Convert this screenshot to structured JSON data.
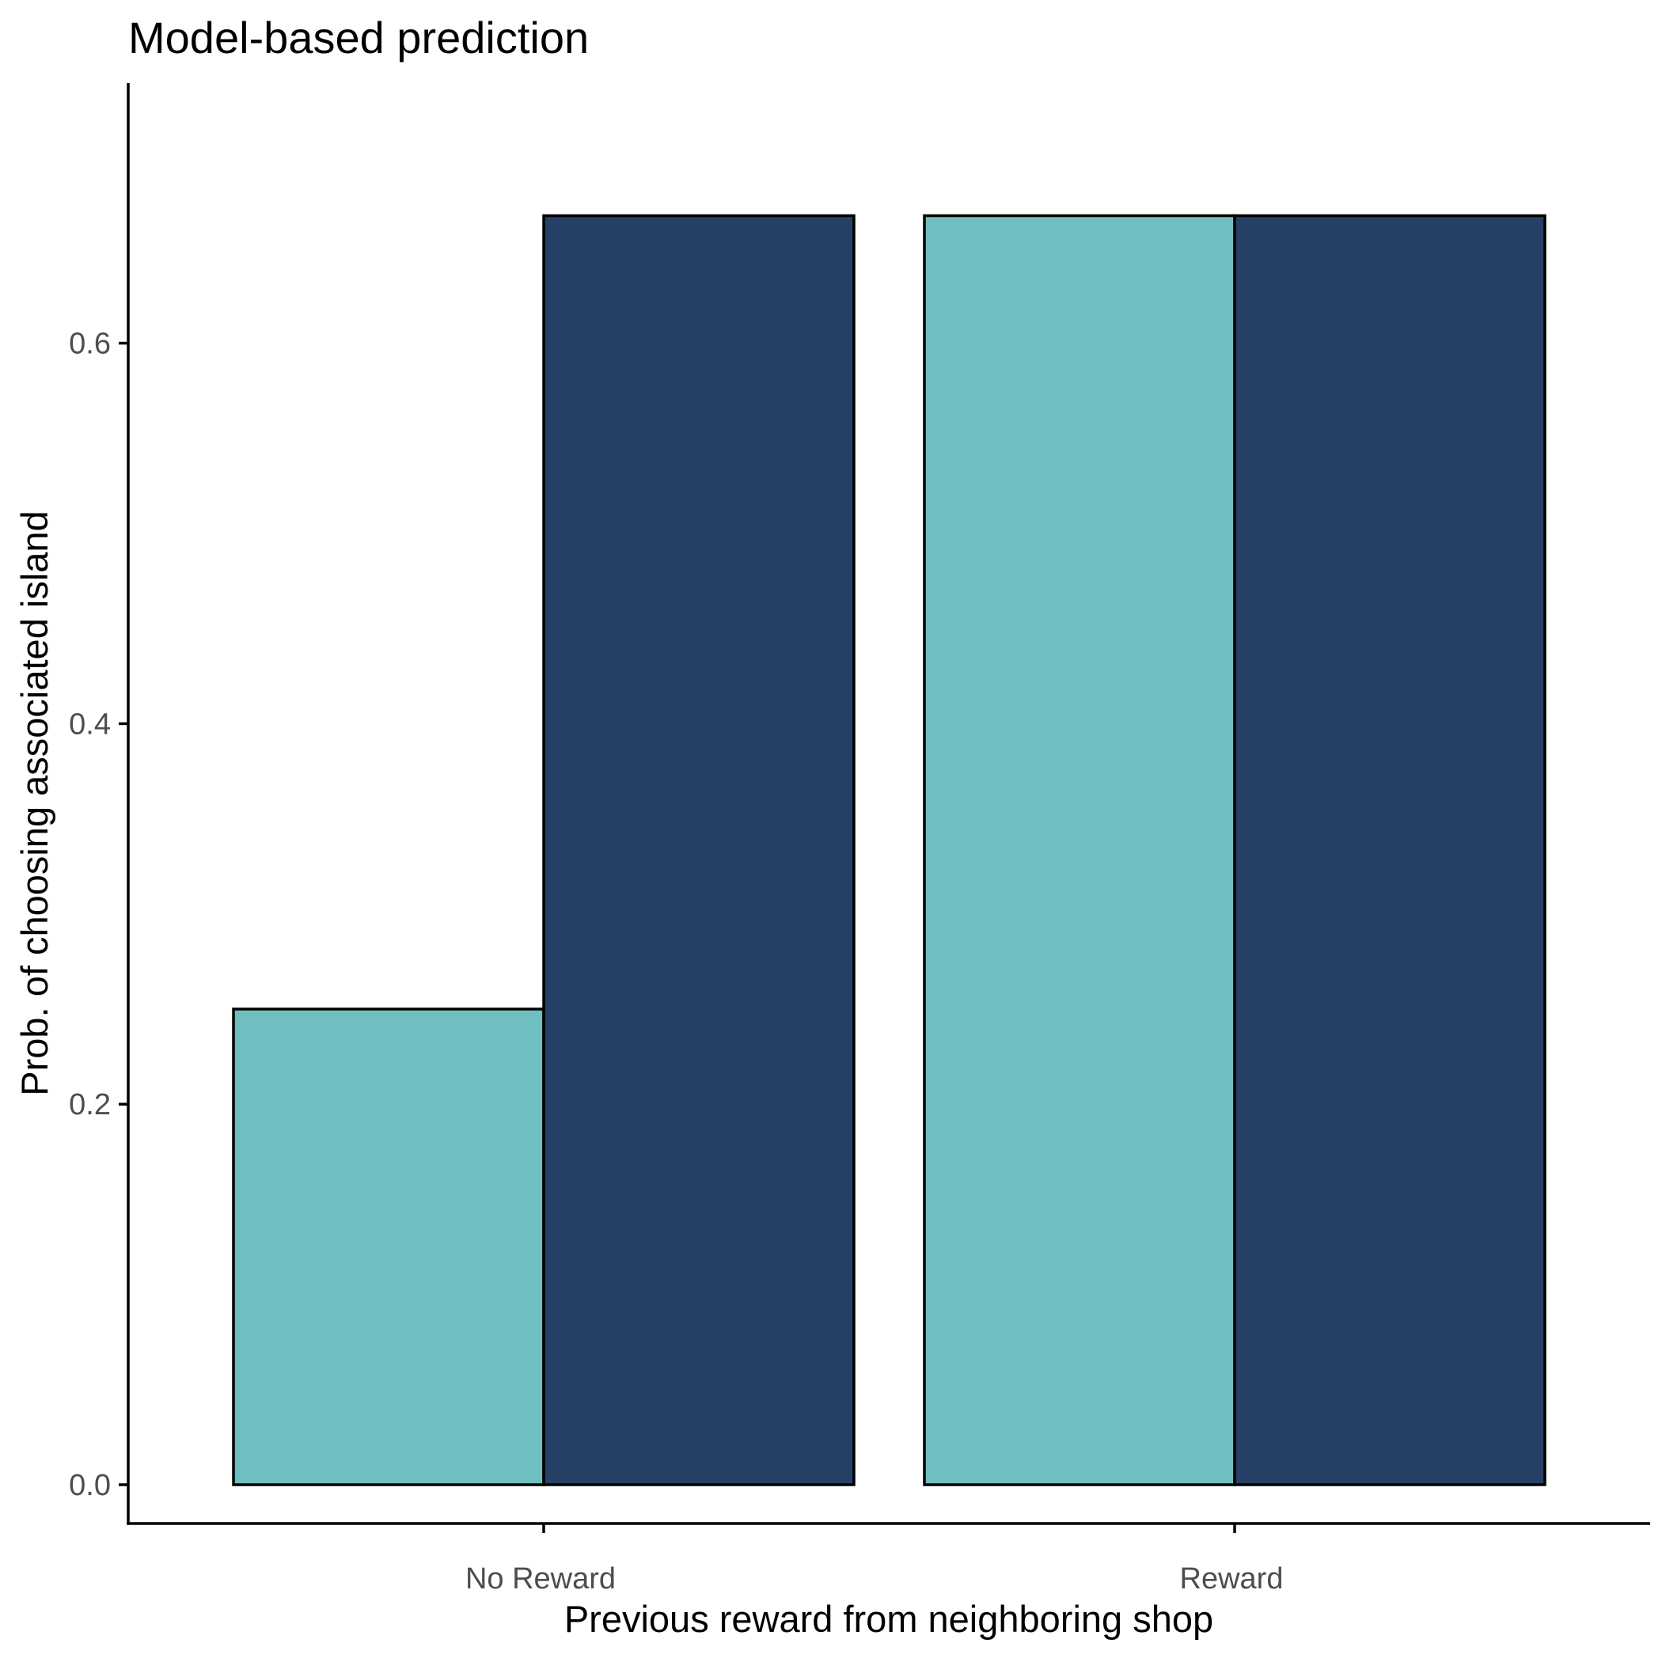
{
  "chart_data": {
    "type": "bar",
    "title": "Model-based prediction",
    "xlabel": "Previous reward from neighboring shop",
    "ylabel": "Prob. of choosing associated island",
    "categories": [
      "No Reward",
      "Reward"
    ],
    "series": [
      {
        "values": [
          0.25,
          0.667
        ],
        "color": "#70bfc0"
      },
      {
        "values": [
          0.667,
          0.667
        ],
        "color": "#274166"
      }
    ],
    "yticks": [
      "0.0",
      "0.2",
      "0.4",
      "0.6"
    ],
    "ylim": [
      -0.036,
      0.7
    ],
    "grid": false,
    "legend": "none"
  }
}
